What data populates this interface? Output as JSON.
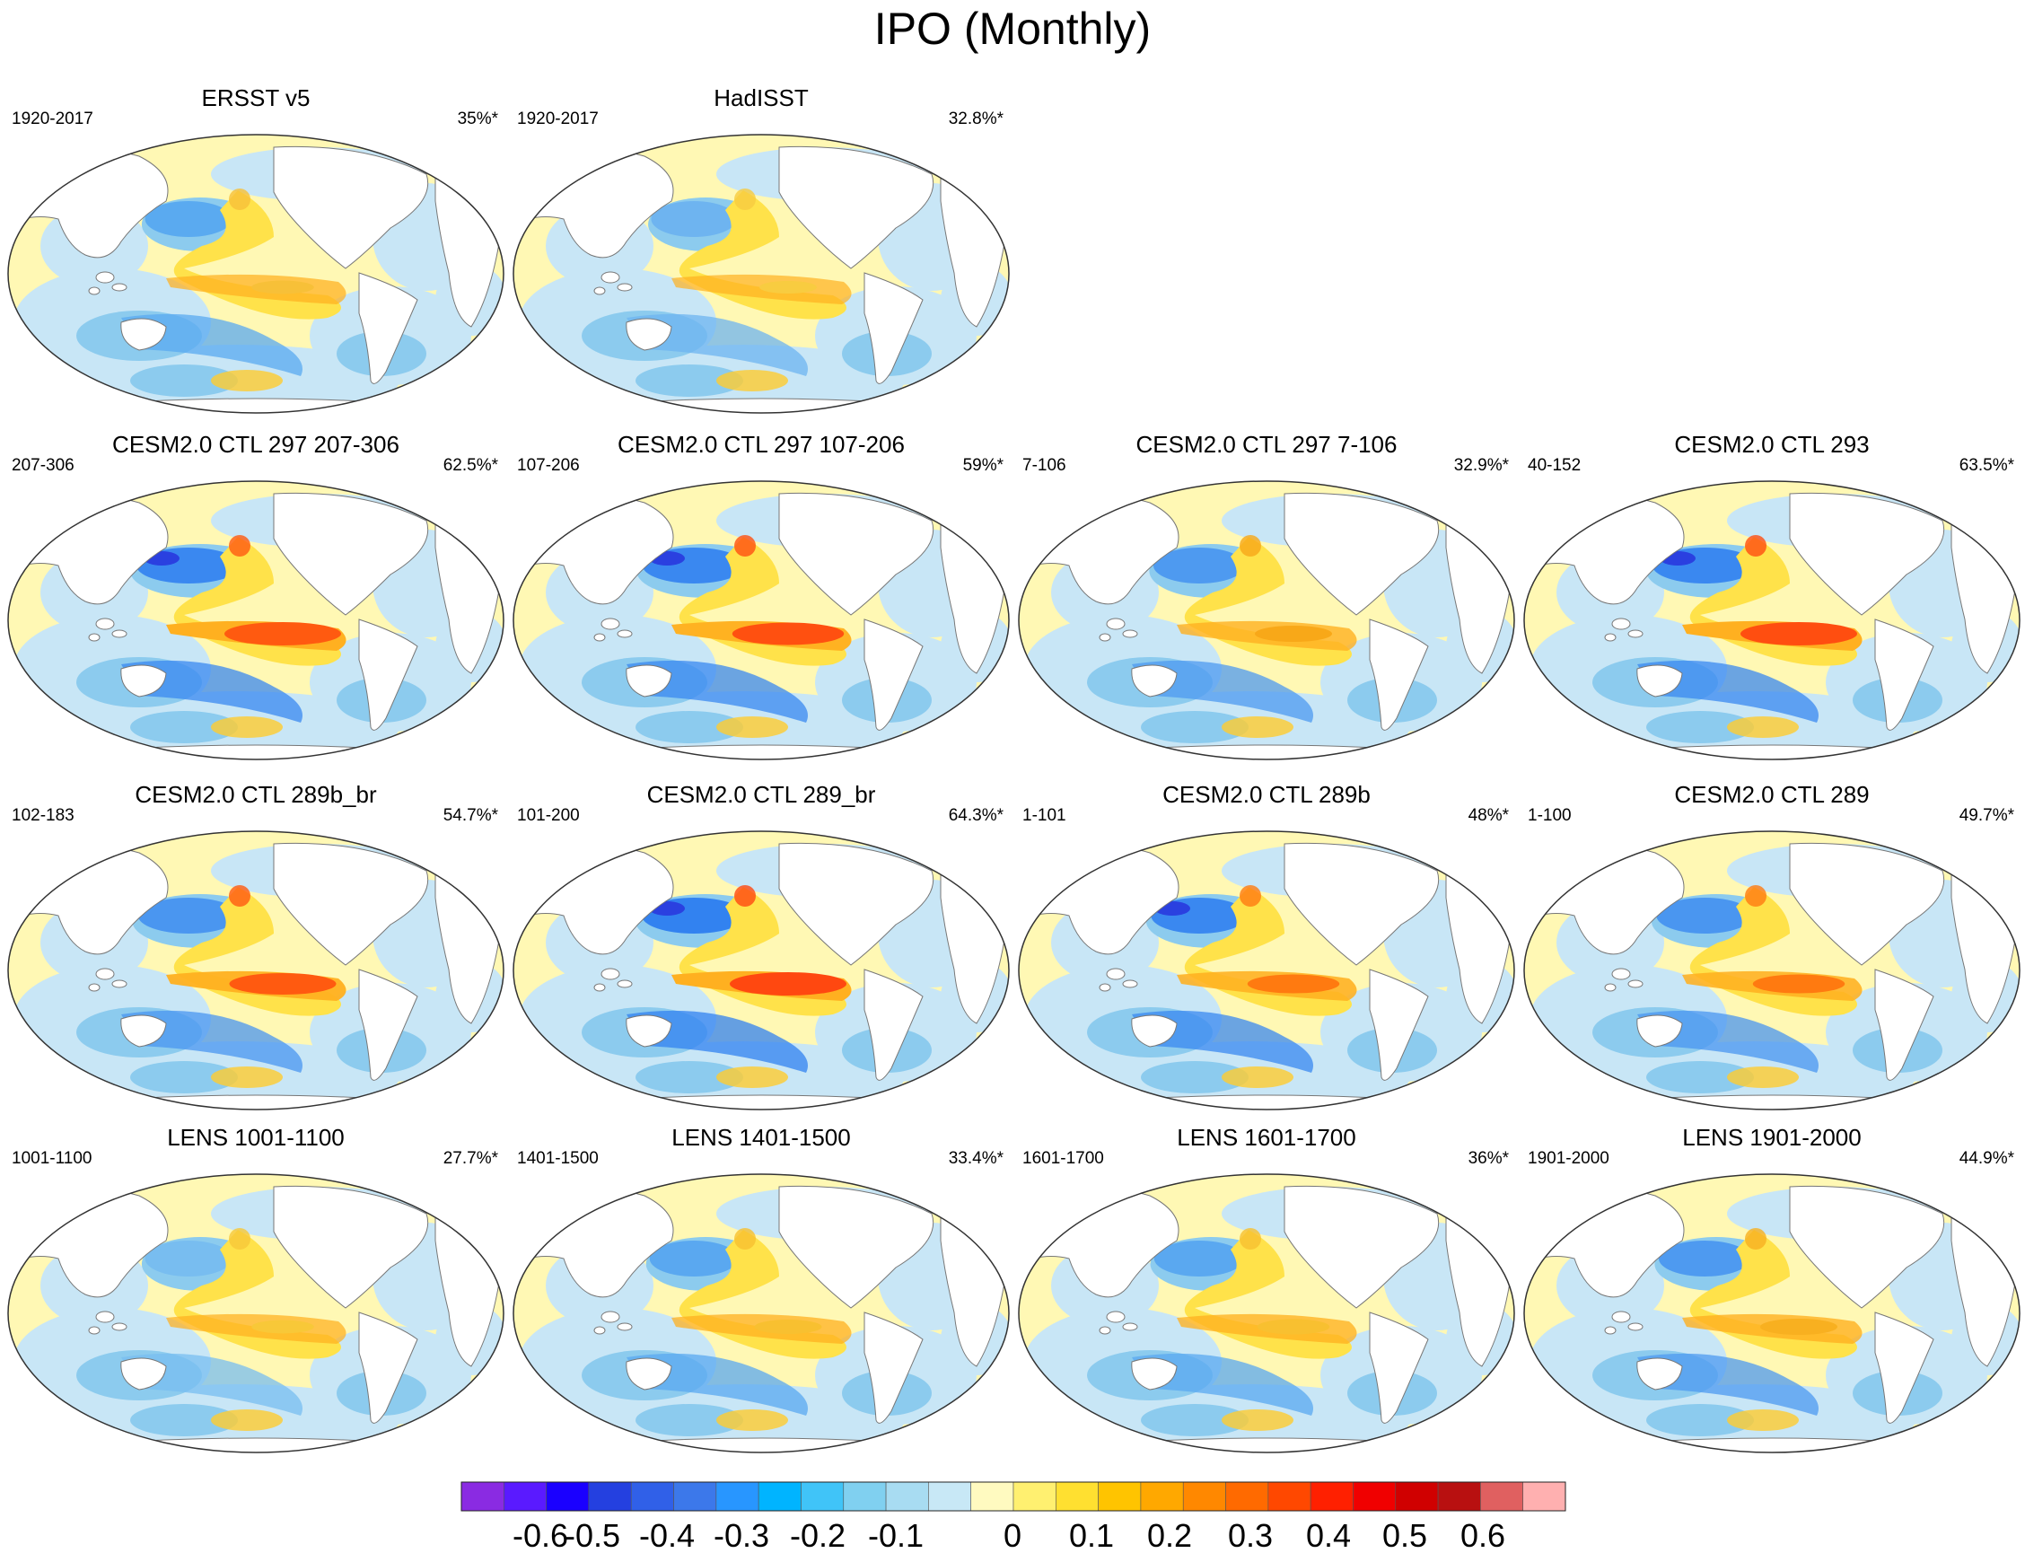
{
  "title": "IPO (Monthly)",
  "chart_data": {
    "type": "map",
    "variable": "IPO (Monthly)",
    "panels": [
      {
        "title": "ERSST v5",
        "period": "1920-2017",
        "pct": "35%*"
      },
      {
        "title": "HadISST",
        "period": "1920-2017",
        "pct": "32.8%*"
      },
      {
        "title": "CESM2.0 CTL 297 207-306",
        "period": "207-306",
        "pct": "62.5%*"
      },
      {
        "title": "CESM2.0 CTL 297 107-206",
        "period": "107-206",
        "pct": "59%*"
      },
      {
        "title": "CESM2.0 CTL 297 7-106",
        "period": "7-106",
        "pct": "32.9%*"
      },
      {
        "title": "CESM2.0 CTL 293",
        "period": "40-152",
        "pct": "63.5%*"
      },
      {
        "title": "CESM2.0 CTL 289b_br",
        "period": "102-183",
        "pct": "54.7%*"
      },
      {
        "title": "CESM2.0 CTL 289_br",
        "period": "101-200",
        "pct": "64.3%*"
      },
      {
        "title": "CESM2.0 CTL 289b",
        "period": "1-101",
        "pct": "48%*"
      },
      {
        "title": "CESM2.0 CTL 289",
        "period": "1-100",
        "pct": "49.7%*"
      },
      {
        "title": "LENS 1001-1100",
        "period": "1001-1100",
        "pct": "27.7%*"
      },
      {
        "title": "LENS 1401-1500",
        "period": "1401-1500",
        "pct": "33.4%*"
      },
      {
        "title": "LENS 1601-1700",
        "period": "1601-1700",
        "pct": "36%*"
      },
      {
        "title": "LENS 1901-2000",
        "period": "1901-2000",
        "pct": "44.9%*"
      }
    ],
    "colorbar": {
      "colors": [
        "#8a2be2",
        "#5a1aff",
        "#1a00ff",
        "#2440e0",
        "#3060e8",
        "#3c78ea",
        "#2896ff",
        "#00b4ff",
        "#40c4f8",
        "#80d0f0",
        "#a8dcf2",
        "#c8e8f6",
        "#fffac0",
        "#fff070",
        "#ffe030",
        "#ffc400",
        "#ffa800",
        "#ff8800",
        "#ff6a00",
        "#ff4800",
        "#ff2000",
        "#f00000",
        "#d00000",
        "#b81010",
        "#e06060",
        "#ffb0b0"
      ],
      "labels": [
        "-0.6",
        "-0.5",
        "-0.4",
        "-0.3",
        "-0.2",
        "-0.1",
        "0",
        "0.1",
        "0.2",
        "0.3",
        "0.4",
        "0.5",
        "0.6"
      ]
    }
  }
}
